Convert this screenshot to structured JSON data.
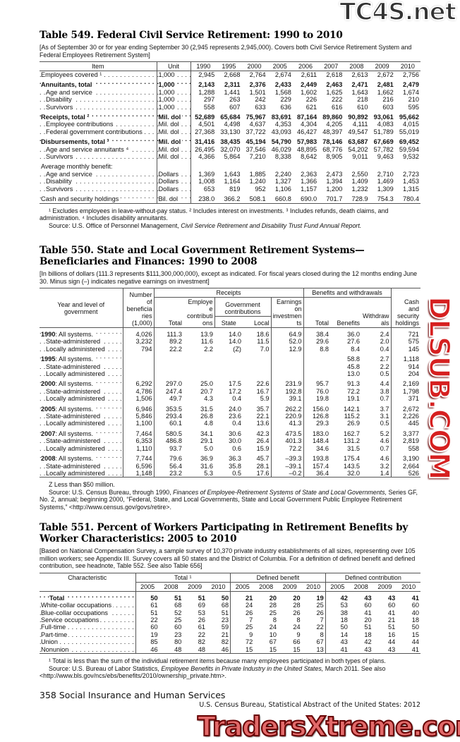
{
  "watermarks": {
    "top": "TC4S.net",
    "middle": "DLSUB.COM",
    "bottom": "TradersXtreme.com"
  },
  "t549": {
    "title": "Table 549. Federal Civil Service Retirement: 1990 to 2010",
    "headnote": "[As of September 30 or for year ending September 30 (2,945 represents 2,945,000). Covers both Civil Service Retirement System and Federal Employees Retirement System]",
    "col_item": "Item",
    "col_unit": "Unit",
    "years": [
      "1990",
      "1995",
      "2000",
      "2005",
      "2006",
      "2007",
      "2008",
      "2009",
      "2010"
    ],
    "rows": [
      {
        "label": "Employees covered ¹",
        "unit": "1,000",
        "values": [
          "2,945",
          "2,668",
          "2,764",
          "2,674",
          "2,611",
          "2,618",
          "2,613",
          "2,672",
          "2,756"
        ]
      },
      {
        "label": "Annuitants, total",
        "unit": "1,000",
        "bold": true,
        "gap": true,
        "values": [
          "2,143",
          "2,311",
          "2,376",
          "2,433",
          "2,449",
          "2,463",
          "2,471",
          "2,481",
          "2,479"
        ]
      },
      {
        "label": "Age and service",
        "unit": "1,000",
        "indent": 1,
        "values": [
          "1,288",
          "1,441",
          "1,501",
          "1,568",
          "1,602",
          "1,625",
          "1,643",
          "1,662",
          "1,674"
        ]
      },
      {
        "label": "Disability",
        "unit": "1,000",
        "indent": 1,
        "values": [
          "297",
          "263",
          "242",
          "229",
          "226",
          "222",
          "218",
          "216",
          "210"
        ]
      },
      {
        "label": "Survivors",
        "unit": "1,000",
        "indent": 1,
        "values": [
          "558",
          "607",
          "633",
          "636",
          "621",
          "616",
          "610",
          "603",
          "595"
        ]
      },
      {
        "label": "Receipts, total ²",
        "unit": "Mil. dol",
        "bold": true,
        "gap": true,
        "values": [
          "52,689",
          "65,684",
          "75,967",
          "83,691",
          "87,164",
          "89,860",
          "90,892",
          "93,061",
          "95,662"
        ]
      },
      {
        "label": "Employee contributions",
        "unit": "Mil. dol",
        "indent": 1,
        "values": [
          "4,501",
          "4,498",
          "4,637",
          "4,353",
          "4,304",
          "4,205",
          "4,111",
          "4,083",
          "4,015"
        ]
      },
      {
        "label": "Federal government contributions",
        "unit": "Mil. dol",
        "indent": 1,
        "values": [
          "27,368",
          "33,130",
          "37,722",
          "43,093",
          "46,427",
          "48,397",
          "49,547",
          "51,789",
          "55,019"
        ]
      },
      {
        "label": "Disbursements, total ³",
        "unit": "Mil. dol",
        "bold": true,
        "gap": true,
        "values": [
          "31,416",
          "38,435",
          "45,194",
          "54,790",
          "57,983",
          "78,146",
          "63,687",
          "67,669",
          "69,452"
        ]
      },
      {
        "label": "Age and service annuitants ⁴",
        "unit": "Mil. dol",
        "indent": 1,
        "values": [
          "26,495",
          "32,070",
          "37,546",
          "46,029",
          "48,895",
          "68,776",
          "54,202",
          "57,782",
          "59,594"
        ]
      },
      {
        "label": "Survivors",
        "unit": "Mil. dol",
        "indent": 1,
        "values": [
          "4,366",
          "5,864",
          "7,210",
          "8,338",
          "8,642",
          "8,905",
          "9,011",
          "9,463",
          "9,532"
        ]
      },
      {
        "label": "Average monthly benefit:",
        "unit": "",
        "gap": true,
        "nodots": true,
        "values": [
          "",
          "",
          "",
          "",
          "",
          "",
          "",
          "",
          ""
        ]
      },
      {
        "label": "Age and service",
        "unit": "Dollars",
        "indent": 1,
        "values": [
          "1,369",
          "1,643",
          "1,885",
          "2,240",
          "2,363",
          "2,473",
          "2,550",
          "2,710",
          "2,723"
        ]
      },
      {
        "label": "Disability",
        "unit": "Dollars",
        "indent": 1,
        "values": [
          "1,008",
          "1,164",
          "1,240",
          "1,327",
          "1,366",
          "1,394",
          "1,409",
          "1,469",
          "1,453"
        ]
      },
      {
        "label": "Survivors",
        "unit": "Dollars",
        "indent": 1,
        "values": [
          "653",
          "819",
          "952",
          "1,106",
          "1,157",
          "1,200",
          "1,232",
          "1,309",
          "1,315"
        ]
      },
      {
        "label": "Cash and security holdings",
        "unit": "Bil. dol",
        "gap": true,
        "values": [
          "238.0",
          "366.2",
          "508.1",
          "660.8",
          "690.0",
          "701.7",
          "728.9",
          "754.3",
          "780.4"
        ]
      }
    ],
    "footnote": "¹ Excludes employees in leave-without-pay status. ² Includes interest on investments. ³ Includes refunds, death claims, and administration. ⁴ Includes disability annuitants.",
    "source_prefix": "Source: U.S. Office of Personnel Management, ",
    "source_title": "Civil Service Retirement and Disability Trust Fund Annual Report."
  },
  "t550": {
    "title": "Table 550. State and Local Government Retirement Systems—Beneficiaries and Finances: 1990 to 2008",
    "headnote": "[In billions of dollars (111.3 represents $111,300,000,000), except as indicated. For fiscal years closed during the 12 months ending June 30. Minus sign (–) indicates negative earnings on investment]",
    "headers": {
      "year_level": "Year and level of government",
      "number": "Number of beneficiaries (1,000)",
      "receipts": "Receipts",
      "benefits_group": "Benefits and withdrawals",
      "cash": "Cash and security holdings",
      "total": "Total",
      "employee": "Employee contributions",
      "gov": "Government contributions",
      "earnings": "Earnings on investments",
      "state": "State",
      "local": "Local",
      "btotal": "Total",
      "benefits": "Benefits",
      "withdrawals": "Withdrawals"
    },
    "groups": [
      {
        "year": "1990",
        "rows": [
          {
            "label": ": All systems.",
            "values": [
              "4,026",
              "111.3",
              "13.9",
              "14.0",
              "18.6",
              "64.9",
              "38.4",
              "36.0",
              "2.4",
              "721"
            ]
          },
          {
            "label": "State-administered",
            "values": [
              "3,232",
              "89.2",
              "11.6",
              "14.0",
              "11.5",
              "52.0",
              "29.6",
              "27.6",
              "2.0",
              "575"
            ]
          },
          {
            "label": "Locally administered",
            "values": [
              "794",
              "22.2",
              "2.2",
              "(Z)",
              "7.0",
              "12.9",
              "8.8",
              "8.4",
              "0.4",
              "145"
            ]
          }
        ]
      },
      {
        "year": "1995",
        "rows": [
          {
            "label": ": All systems.",
            "values": [
              "",
              "",
              "",
              "",
              "",
              "",
              "",
              "58.8",
              "2.7",
              "1,118"
            ]
          },
          {
            "label": "State-administered",
            "values": [
              "",
              "",
              "",
              "",
              "",
              "",
              "",
              "45.8",
              "2.2",
              "914"
            ]
          },
          {
            "label": "Locally administered",
            "values": [
              "",
              "",
              "",
              "",
              "",
              "",
              "",
              "13.0",
              "0.5",
              "204"
            ]
          }
        ]
      },
      {
        "year": "2000",
        "rows": [
          {
            "label": ": All systems.",
            "values": [
              "6,292",
              "297.0",
              "25.0",
              "17.5",
              "22.6",
              "231.9",
              "95.7",
              "91.3",
              "4.4",
              "2,169"
            ]
          },
          {
            "label": "State-administered",
            "values": [
              "4,786",
              "247.4",
              "20.7",
              "17.2",
              "16.7",
              "192.8",
              "76.0",
              "72.2",
              "3.8",
              "1,798"
            ]
          },
          {
            "label": "Locally administered",
            "values": [
              "1,506",
              "49.7",
              "4.3",
              "0.4",
              "5.9",
              "39.1",
              "19.8",
              "19.1",
              "0.7",
              "371"
            ]
          }
        ]
      },
      {
        "year": "2005",
        "rows": [
          {
            "label": ": All systems.",
            "values": [
              "6,946",
              "353.5",
              "31.5",
              "24.0",
              "35.7",
              "262.2",
              "156.0",
              "142.1",
              "3.7",
              "2,672"
            ]
          },
          {
            "label": "State-administered",
            "values": [
              "5,846",
              "293.4",
              "26.8",
              "23.6",
              "22.1",
              "220.9",
              "126.8",
              "115.2",
              "3.1",
              "2,226"
            ]
          },
          {
            "label": "Locally administered",
            "values": [
              "1,100",
              "60.1",
              "4.8",
              "0.4",
              "13.6",
              "41.3",
              "29.3",
              "26.9",
              "0.5",
              "445"
            ]
          }
        ]
      },
      {
        "year": "2007",
        "rows": [
          {
            "label": ": All systems.",
            "values": [
              "7,464",
              "580.5",
              "34.1",
              "30.6",
              "42.3",
              "473.5",
              "183.0",
              "162.7",
              "5.2",
              "3,377"
            ]
          },
          {
            "label": "State-administered",
            "values": [
              "6,353",
              "486.8",
              "29.1",
              "30.0",
              "26.4",
              "401.3",
              "148.4",
              "131.2",
              "4.6",
              "2,819"
            ]
          },
          {
            "label": "Locally administered",
            "values": [
              "1,110",
              "93.7",
              "5.0",
              "0.6",
              "15.9",
              "72.2",
              "34.6",
              "31.5",
              "0.7",
              "558"
            ]
          }
        ]
      },
      {
        "year": "2008",
        "rows": [
          {
            "label": ": All systems.",
            "values": [
              "7,744",
              "79.6",
              "36.9",
              "36.3",
              "45.7",
              "–39.3",
              "193.8",
              "175.4",
              "4.6",
              "3,190"
            ]
          },
          {
            "label": "State-administered",
            "values": [
              "6,596",
              "56.4",
              "31.6",
              "35.8",
              "28.1",
              "–39.1",
              "157.4",
              "143.5",
              "3.2",
              "2,664"
            ]
          },
          {
            "label": "Locally administered",
            "values": [
              "1,148",
              "23.2",
              "5.3",
              "0.5",
              "17.6",
              "–0.2",
              "36.4",
              "32.0",
              "1.4",
              "526"
            ]
          }
        ]
      }
    ],
    "note_z": "Z Less than $50 million.",
    "source_prefix": "Source: U.S. Census Bureau, through 1990, ",
    "source_title": "Finances of Employee-Retirement Systems of State and Local Governments,",
    "source_rest": " Series GF, No. 2, annual; beginning 2000, “Federal, State, and Local Governments, State and Local Government Public Employee Retirement Systems,” <http://www.census.gov/govs/retire>."
  },
  "t551": {
    "title": "Table 551. Percent of Workers Participating in Retirement Benefits by Worker Characteristics: 2005 to 2010",
    "headnote": "[Based on National Compensation Survey, a sample survey of 10,370 private industry establishments of all sizes, representing over 105 million workers; see Appendix III. Survey covers all 50 states and the District of Columbia. For a definition of defined benefit and defined contribution, see headnote, Table 552. See also Table 656]",
    "col_char": "Characteristic",
    "groups": [
      "Total ¹",
      "Defined benefit",
      "Defined contribution"
    ],
    "years": [
      "2005",
      "2008",
      "2009",
      "2010"
    ],
    "rows": [
      {
        "label": "Total",
        "bold": true,
        "values": [
          "50",
          "51",
          "51",
          "50",
          "21",
          "20",
          "20",
          "19",
          "42",
          "43",
          "43",
          "41"
        ]
      },
      {
        "label": "White-collar occupations",
        "values": [
          "61",
          "68",
          "69",
          "68",
          "24",
          "28",
          "28",
          "25",
          "53",
          "60",
          "60",
          "60"
        ]
      },
      {
        "label": "Blue-collar occupations",
        "values": [
          "51",
          "52",
          "53",
          "51",
          "26",
          "25",
          "26",
          "26",
          "38",
          "41",
          "41",
          "40"
        ]
      },
      {
        "label": "Service occupations",
        "values": [
          "22",
          "25",
          "26",
          "23",
          "7",
          "8",
          "8",
          "7",
          "18",
          "20",
          "21",
          "18"
        ]
      },
      {
        "label": "Full-time",
        "values": [
          "60",
          "60",
          "61",
          "59",
          "25",
          "24",
          "24",
          "22",
          "50",
          "51",
          "51",
          "50"
        ]
      },
      {
        "label": "Part-time",
        "values": [
          "19",
          "23",
          "22",
          "21",
          "9",
          "10",
          "9",
          "8",
          "14",
          "18",
          "16",
          "15"
        ]
      },
      {
        "label": "Union",
        "values": [
          "85",
          "80",
          "82",
          "82",
          "72",
          "67",
          "66",
          "67",
          "43",
          "42",
          "44",
          "44"
        ]
      },
      {
        "label": "Nonunion",
        "values": [
          "46",
          "48",
          "48",
          "46",
          "15",
          "15",
          "15",
          "13",
          "41",
          "43",
          "43",
          "41"
        ]
      }
    ],
    "footnote": "¹ Total is less than the sum of the individual retirement items because many employees participated in both types of plans.",
    "source_prefix": "Source: U.S. Bureau of Labor Statistics, ",
    "source_title": "Employee Benefits in Private Industry in the United States,",
    "source_rest": " March 2011. See also <http://www.bls.gov/ncs/ebs/benefits/2010/ownership_private.htm>."
  },
  "footer": {
    "page": "358  Social Insurance and Human Services",
    "credit": "U.S. Census Bureau, Statistical Abstract of the United States: 2012"
  }
}
